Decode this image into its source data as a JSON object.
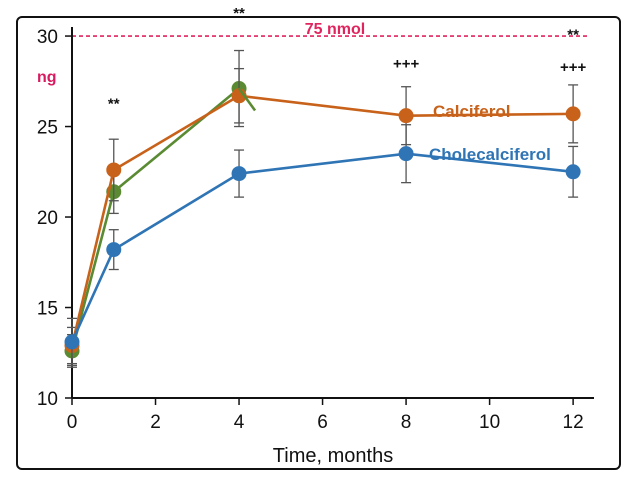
{
  "chart_data": {
    "type": "line",
    "xlabel": "Time, months",
    "ylabel": "ng",
    "xlim": [
      0,
      12.5
    ],
    "ylim": [
      10,
      30.5
    ],
    "xticks": [
      0,
      2,
      4,
      6,
      8,
      10,
      12
    ],
    "yticks": [
      10,
      15,
      20,
      25,
      30
    ],
    "reference_line": {
      "value": 30,
      "label": "75 nmol",
      "color": "#e0245e"
    },
    "colors": {
      "ref": "#e0245e",
      "unit": "#d81b60",
      "axis": "#111111"
    },
    "series": [
      {
        "name": "green",
        "label": "",
        "color": "#5a8a32",
        "x": [
          0,
          1,
          4
        ],
        "values": [
          12.6,
          21.4,
          27.1
        ],
        "err": [
          0.9,
          1.2,
          2.1
        ]
      },
      {
        "name": "calciferol",
        "label": "Calciferol",
        "color": "#c8621a",
        "x": [
          0,
          1,
          4,
          8,
          12
        ],
        "values": [
          12.9,
          22.6,
          26.7,
          25.6,
          25.7
        ],
        "err": [
          1.0,
          1.7,
          1.5,
          1.6,
          1.6
        ]
      },
      {
        "name": "cholecalciferol",
        "label": "Cholecalciferol",
        "color": "#2f75b5",
        "x": [
          0,
          1,
          4,
          8,
          12
        ],
        "values": [
          13.1,
          18.2,
          22.4,
          23.5,
          22.5
        ],
        "err": [
          1.3,
          1.1,
          1.3,
          1.6,
          1.4
        ]
      }
    ],
    "annotations": [
      {
        "text": "**",
        "x": 1,
        "y": 26.0
      },
      {
        "text": "**",
        "x": 4,
        "y": 31.0
      },
      {
        "text": "+++",
        "x": 8,
        "y": 28.2
      },
      {
        "text": "**",
        "x": 12,
        "y": 29.8
      },
      {
        "text": "+++",
        "x": 12,
        "y": 28.0
      }
    ]
  }
}
